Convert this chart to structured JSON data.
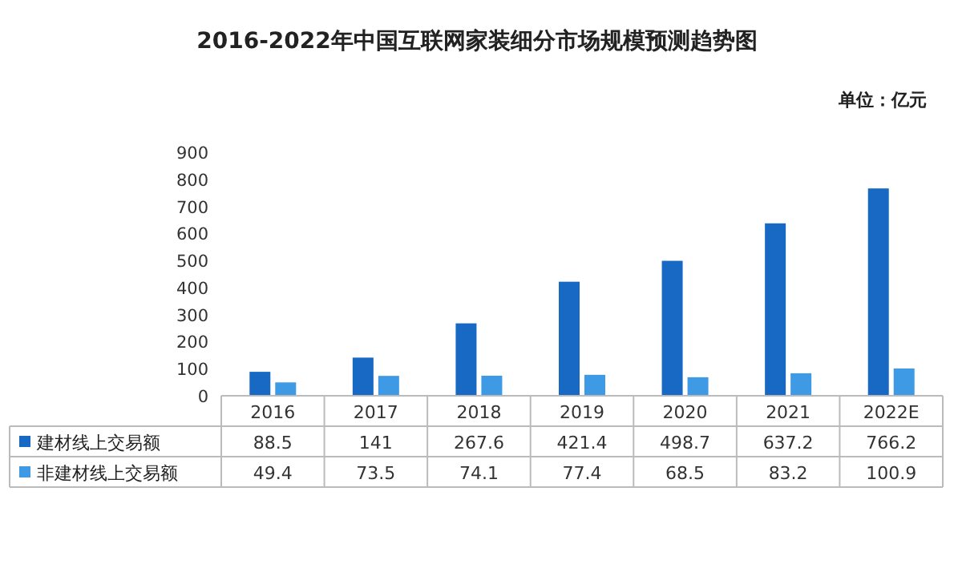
{
  "chart_data": {
    "type": "bar",
    "title": "2016-2022年中国互联网家装细分市场规模预测趋势图",
    "annotations": [
      "单位：亿元"
    ],
    "categories": [
      "2016",
      "2017",
      "2018",
      "2019",
      "2020",
      "2021",
      "2022E"
    ],
    "series": [
      {
        "name": "建材线上交易额",
        "color": "#1769c4",
        "values": [
          88.5,
          141,
          267.6,
          421.4,
          498.7,
          637.2,
          766.2
        ]
      },
      {
        "name": "非建材线上交易额",
        "color": "#3f9ae6",
        "values": [
          49.4,
          73.5,
          74.1,
          77.4,
          68.5,
          83.2,
          100.9
        ]
      }
    ],
    "ylim": [
      0,
      900
    ],
    "yticks": [
      0,
      100,
      200,
      300,
      400,
      500,
      600,
      700,
      800,
      900
    ],
    "data_labels": true,
    "legend": "bottom",
    "grid": false
  }
}
